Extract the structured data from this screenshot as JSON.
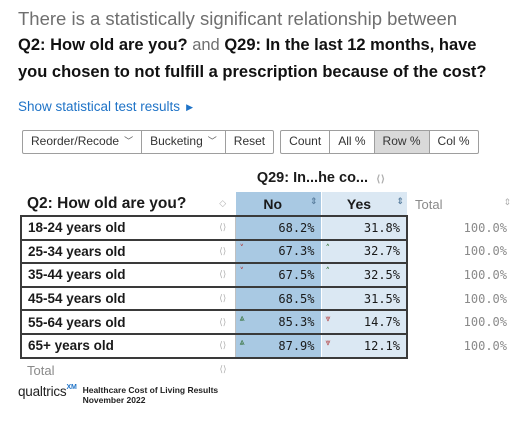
{
  "heading": {
    "line1": "There is a statistically significant relationship between",
    "q2": "Q2: How old are you?",
    "and": "and",
    "q29_part1": "Q29: In the last 12 months, have",
    "q29_part2": "you chosen to not fulfill a prescription because of the cost?"
  },
  "stat_link": {
    "label": "Show statistical test results",
    "icon": "triangle-right-icon"
  },
  "toolbar": {
    "reorder": "Reorder/Recode",
    "bucketing": "Bucketing",
    "reset": "Reset",
    "count": "Count",
    "all_pct": "All %",
    "row_pct": "Row %",
    "col_pct": "Col %",
    "active": "Row %"
  },
  "table": {
    "column_variable": "Q29: In...he co...",
    "row_variable": "Q2: How old are you?",
    "columns": [
      "No",
      "Yes"
    ],
    "total_label": "Total",
    "rows": [
      {
        "label": "18-24 years old",
        "no": "68.2%",
        "yes": "31.8%",
        "total": "100.0%",
        "no_ind": "",
        "yes_ind": ""
      },
      {
        "label": "25-34 years old",
        "no": "67.3%",
        "yes": "32.7%",
        "total": "100.0%",
        "no_ind": "˅",
        "yes_ind": "˄"
      },
      {
        "label": "35-44 years old",
        "no": "67.5%",
        "yes": "32.5%",
        "total": "100.0%",
        "no_ind": "˅",
        "yes_ind": "˄"
      },
      {
        "label": "45-54 years old",
        "no": "68.5%",
        "yes": "31.5%",
        "total": "100.0%",
        "no_ind": "",
        "yes_ind": ""
      },
      {
        "label": "55-64 years old",
        "no": "85.3%",
        "yes": "14.7%",
        "total": "100.0%",
        "no_ind": "⩓",
        "yes_ind": "⩔"
      },
      {
        "label": "65+ years old",
        "no": "87.9%",
        "yes": "12.1%",
        "total": "100.0%",
        "no_ind": "⩓",
        "yes_ind": "⩔"
      }
    ],
    "colors": {
      "no_col": "#a9c9e3",
      "yes_col": "#dbe8f3"
    }
  },
  "footer": {
    "logo": "qualtrics",
    "logo_mark": "XM",
    "line1": "Healthcare Cost of Living Results",
    "line2": "November 2022"
  }
}
